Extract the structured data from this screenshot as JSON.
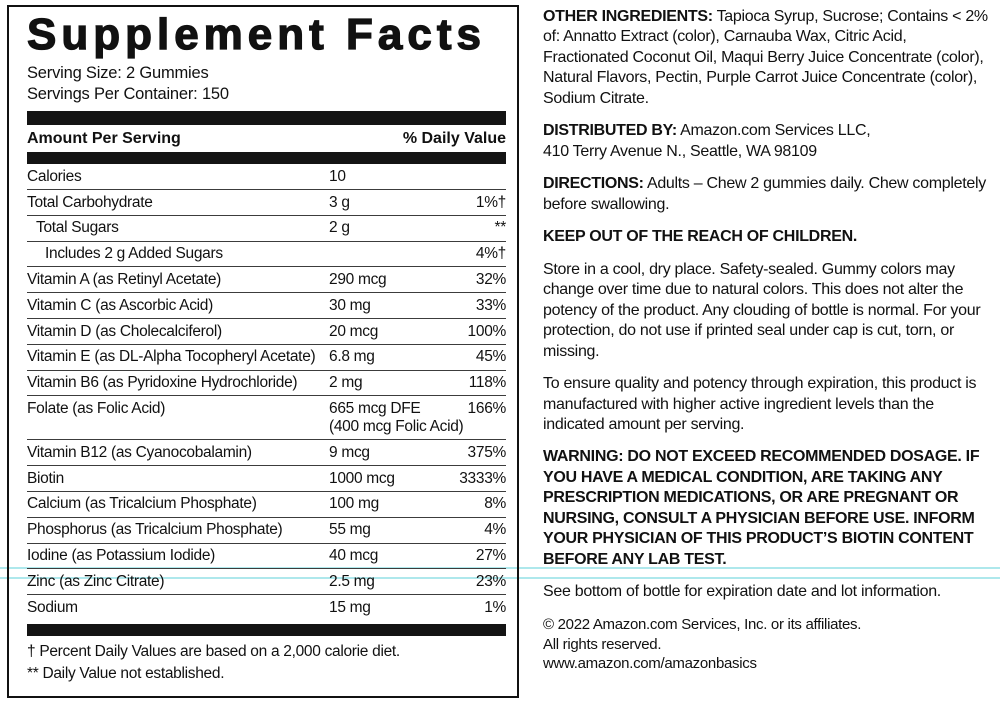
{
  "colors": {
    "ink": "#111111",
    "artifact_cyan": "#aee8ec"
  },
  "panel": {
    "title": "Supplement Facts",
    "serving_size": "Serving Size: 2 Gummies",
    "servings_per_container": "Servings Per Container: 150",
    "col_amount": "Amount Per Serving",
    "col_dv": "% Daily Value",
    "rows": [
      {
        "name": "Calories",
        "amount": "10",
        "dv": "",
        "indent": 0
      },
      {
        "name": "Total Carbohydrate",
        "amount": "3 g",
        "dv": "1%†",
        "indent": 0
      },
      {
        "name": "Total Sugars",
        "amount": "2 g",
        "dv": "**",
        "indent": 1
      },
      {
        "name": "Includes 2 g Added Sugars",
        "amount": "",
        "dv": "4%†",
        "indent": 2
      },
      {
        "name": "Vitamin A (as Retinyl Acetate)",
        "amount": "290 mcg",
        "dv": "32%",
        "indent": 0
      },
      {
        "name": "Vitamin C (as Ascorbic Acid)",
        "amount": "30 mg",
        "dv": "33%",
        "indent": 0
      },
      {
        "name": "Vitamin D (as Cholecalciferol)",
        "amount": "20 mcg",
        "dv": "100%",
        "indent": 0
      },
      {
        "name": "Vitamin E (as DL-Alpha Tocopheryl Acetate)",
        "amount": "6.8 mg",
        "dv": "45%",
        "indent": 0
      },
      {
        "name": "Vitamin B6 (as Pyridoxine Hydrochloride)",
        "amount": "2 mg",
        "dv": "118%",
        "indent": 0
      },
      {
        "name": "Folate (as Folic Acid)",
        "amount": "665 mcg DFE",
        "amount2": "(400 mcg Folic Acid)",
        "dv": "166%",
        "indent": 0
      },
      {
        "name": "Vitamin B12 (as Cyanocobalamin)",
        "amount": "9 mcg",
        "dv": "375%",
        "indent": 0
      },
      {
        "name": "Biotin",
        "amount": "1000 mcg",
        "dv": "3333%",
        "indent": 0
      },
      {
        "name": "Calcium (as Tricalcium Phosphate)",
        "amount": "100 mg",
        "dv": "8%",
        "indent": 0
      },
      {
        "name": "Phosphorus (as Tricalcium Phosphate)",
        "amount": "55 mg",
        "dv": "4%",
        "indent": 0
      },
      {
        "name": "Iodine (as Potassium Iodide)",
        "amount": "40 mcg",
        "dv": "27%",
        "indent": 0
      },
      {
        "name": "Zinc (as Zinc Citrate)",
        "amount": "2.5 mg",
        "dv": "23%",
        "indent": 0
      },
      {
        "name": "Sodium",
        "amount": "15 mg",
        "dv": "1%",
        "indent": 0
      }
    ],
    "footnotes": [
      "† Percent Daily Values are based on a 2,000 calorie diet.",
      "** Daily Value not established."
    ]
  },
  "info": {
    "paragraphs": [
      {
        "bold": "OTHER INGREDIENTS:",
        "text": " Tapioca Syrup, Sucrose; Contains < 2% of: Annatto Extract (color), Carnauba Wax, Citric Acid, Fractionated Coconut Oil, Maqui Berry Juice Concentrate (color), Natural Flavors, Pectin, Purple Carrot Juice Concentrate (color), Sodium Citrate."
      },
      {
        "bold": "DISTRIBUTED BY:",
        "text": " Amazon.com Services LLC,",
        "text2": "410 Terry Avenue N., Seattle, WA 98109"
      },
      {
        "bold": "DIRECTIONS:",
        "text": " Adults – Chew 2 gummies daily. Chew completely before swallowing."
      },
      {
        "bold": "KEEP OUT OF THE REACH OF CHILDREN."
      },
      {
        "text": "Store in a cool, dry place. Safety-sealed. Gummy colors may change over time due to natural colors. This does not alter the potency of the product. Any clouding of bottle is normal. For your protection, do not use if printed seal under cap is cut, torn, or missing."
      },
      {
        "text": "To ensure quality and potency through expiration, this product is manufactured with higher active ingredient levels than the indicated amount per serving."
      },
      {
        "bold": "WARNING:  DO NOT EXCEED RECOMMENDED DOSAGE. IF YOU HAVE A MEDICAL CONDITION, ARE TAKING ANY PRESCRIPTION MEDICATIONS, OR ARE PREGNANT OR NURSING, CONSULT A PHYSICIAN BEFORE USE. INFORM YOUR PHYSICIAN OF THIS PRODUCT’S BIOTIN CONTENT BEFORE ANY LAB TEST."
      },
      {
        "text": "See bottom of bottle for expiration date and lot information."
      }
    ],
    "footer_lines": [
      "© 2022 Amazon.com Services, Inc. or its affiliates.",
      "All rights reserved.",
      "www.amazon.com/amazonbasics"
    ]
  }
}
